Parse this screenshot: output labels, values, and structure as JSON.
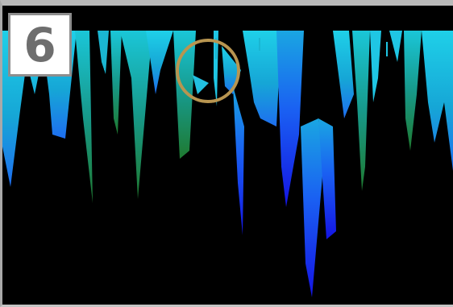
{
  "step": {
    "number": "6"
  },
  "highlight": {
    "shape": "circle",
    "color": "#b89550"
  },
  "visualization": {
    "background": "#000000",
    "palette": [
      "#1ec8e6",
      "#12a8c8",
      "#1e8a3c",
      "#1e78f0",
      "#1414e6"
    ]
  }
}
